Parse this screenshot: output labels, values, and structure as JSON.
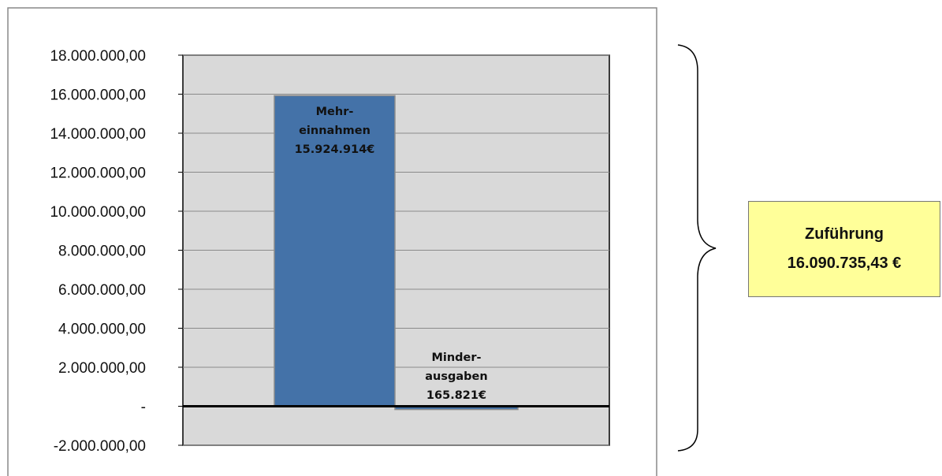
{
  "chart_data": {
    "type": "bar",
    "categories": [
      "Mehreinnahmen",
      "Minderausgaben"
    ],
    "values": [
      15924914,
      -165821
    ],
    "bar_labels": [
      [
        "Mehr-",
        "einnahmen",
        "15.924.914€"
      ],
      [
        "Minder-",
        "ausgaben",
        "165.821€"
      ]
    ],
    "ylim": [
      -2000000,
      18000000
    ],
    "ticks": [
      {
        "value": 18000000,
        "label": "18.000.000,00"
      },
      {
        "value": 16000000,
        "label": "16.000.000,00"
      },
      {
        "value": 14000000,
        "label": "14.000.000,00"
      },
      {
        "value": 12000000,
        "label": "12.000.000,00"
      },
      {
        "value": 10000000,
        "label": "10.000.000,00"
      },
      {
        "value": 8000000,
        "label": "8.000.000,00"
      },
      {
        "value": 6000000,
        "label": "6.000.000,00"
      },
      {
        "value": 4000000,
        "label": "4.000.000,00"
      },
      {
        "value": 2000000,
        "label": "2.000.000,00"
      },
      {
        "value": 0,
        "label": "-"
      },
      {
        "value": -2000000,
        "label": "-2.000.000,00"
      }
    ],
    "grid": true,
    "colors": {
      "bar": "#4472a8",
      "bar_border": "#8c8c8c",
      "plot_bg": "#d9d9d9",
      "frame": "#000000"
    }
  },
  "summary": {
    "title": "Zuführung",
    "value": "16.090.735,43 €",
    "bg": "#ffff99"
  }
}
